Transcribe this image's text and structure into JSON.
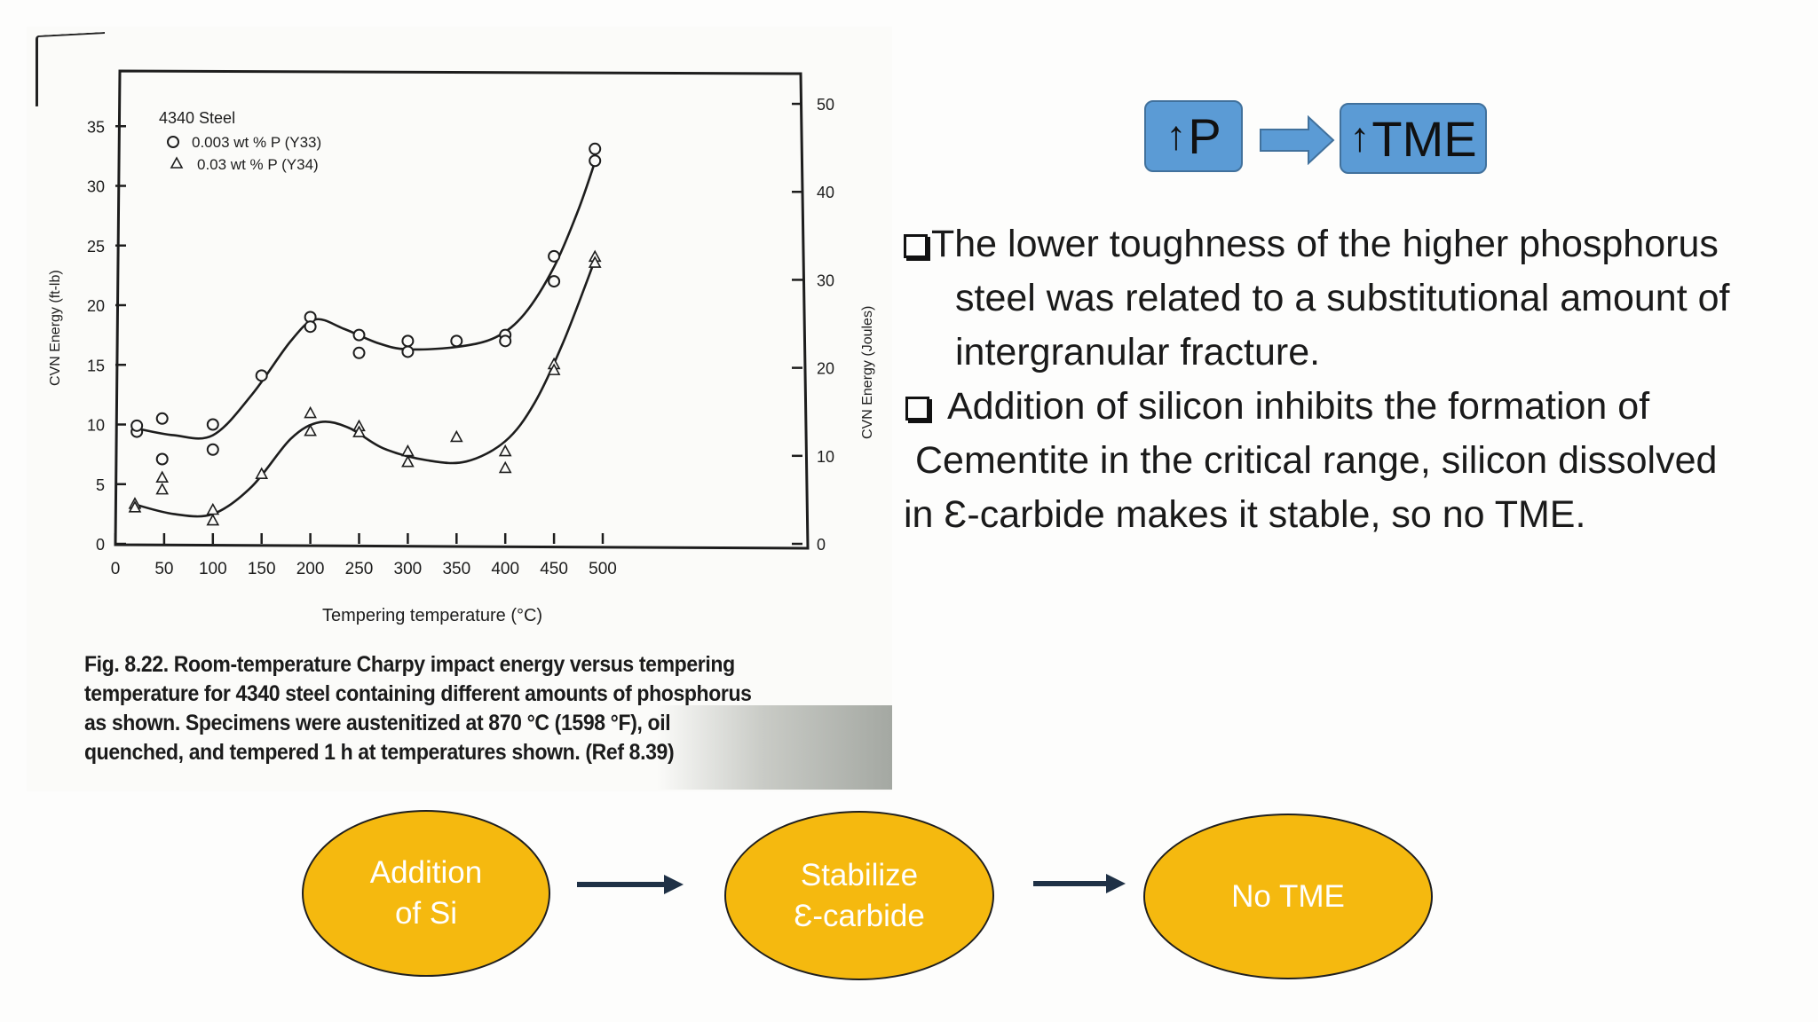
{
  "chart_data": {
    "type": "scatter",
    "title": "",
    "xlabel": "Tempering temperature (°C)",
    "ylabel": "CVN Energy (ft-lb)",
    "y2label": "CVN Energy (Joules)",
    "xlim": [
      0,
      540
    ],
    "ylim": [
      0,
      38
    ],
    "y2lim": [
      0,
      51.5
    ],
    "x_ticks": [
      0,
      50,
      100,
      150,
      200,
      250,
      300,
      350,
      400,
      450,
      500
    ],
    "y_ticks": [
      0,
      5,
      10,
      15,
      20,
      25,
      30,
      35
    ],
    "y2_ticks": [
      0,
      10,
      20,
      30,
      40,
      50
    ],
    "grid": false,
    "legend_title": "4340 Steel",
    "legend_position": "top-left",
    "series": [
      {
        "name": "0.003 wt % P (Y33)",
        "marker": "circle",
        "points": [
          [
            22,
            9.4
          ],
          [
            22,
            9.9
          ],
          [
            48,
            10.5
          ],
          [
            48,
            7.1
          ],
          [
            100,
            10.0
          ],
          [
            100,
            7.9
          ],
          [
            150,
            14.1
          ],
          [
            200,
            19.0
          ],
          [
            200,
            18.2
          ],
          [
            250,
            17.5
          ],
          [
            250,
            16.0
          ],
          [
            300,
            17.0
          ],
          [
            300,
            16.1
          ],
          [
            350,
            17.0
          ],
          [
            400,
            17.5
          ],
          [
            400,
            17.0
          ],
          [
            450,
            24.1
          ],
          [
            450,
            22.0
          ],
          [
            492,
            33.1
          ],
          [
            492,
            32.1
          ]
        ],
        "curve": [
          [
            20,
            9.7
          ],
          [
            60,
            9.1
          ],
          [
            100,
            9.1
          ],
          [
            140,
            12.5
          ],
          [
            180,
            17.0
          ],
          [
            205,
            18.8
          ],
          [
            235,
            18.0
          ],
          [
            270,
            16.8
          ],
          [
            300,
            16.3
          ],
          [
            350,
            16.5
          ],
          [
            390,
            17.3
          ],
          [
            420,
            19.3
          ],
          [
            450,
            23.2
          ],
          [
            475,
            28.0
          ],
          [
            492,
            32.0
          ]
        ]
      },
      {
        "name": "0.03 wt % P (Y34)",
        "marker": "triangle",
        "points": [
          [
            20,
            3.4
          ],
          [
            20,
            3.1
          ],
          [
            48,
            5.6
          ],
          [
            48,
            4.6
          ],
          [
            100,
            2.9
          ],
          [
            100,
            2.0
          ],
          [
            150,
            5.9
          ],
          [
            200,
            11.0
          ],
          [
            200,
            9.5
          ],
          [
            250,
            9.9
          ],
          [
            250,
            9.4
          ],
          [
            300,
            7.8
          ],
          [
            300,
            6.9
          ],
          [
            350,
            9.0
          ],
          [
            400,
            7.8
          ],
          [
            400,
            6.4
          ],
          [
            450,
            15.1
          ],
          [
            450,
            14.6
          ],
          [
            492,
            24.1
          ],
          [
            492,
            23.6
          ]
        ],
        "curve": [
          [
            20,
            3.3
          ],
          [
            60,
            2.5
          ],
          [
            100,
            2.5
          ],
          [
            140,
            4.8
          ],
          [
            180,
            8.8
          ],
          [
            210,
            10.2
          ],
          [
            240,
            9.7
          ],
          [
            275,
            8.0
          ],
          [
            320,
            7.0
          ],
          [
            360,
            6.9
          ],
          [
            400,
            8.6
          ],
          [
            430,
            11.8
          ],
          [
            460,
            17.0
          ],
          [
            492,
            23.8
          ]
        ]
      }
    ]
  },
  "figure": {
    "caption": "Fig. 8.22. Room-temperature Charpy impact energy versus tempering temperature for 4340 steel containing different amounts of phosphorus as shown. Specimens were austenitized at 870 °C (1598 °F), oil quenched, and tempered 1 h at temperatures shown. (Ref 8.39)"
  },
  "flow_top": {
    "up_arrow": "↑",
    "box1": "P",
    "box2": "TME"
  },
  "bullets": {
    "b1_line1": "The lower toughness of the higher phosphorus",
    "b1_line2": "steel was related to a substitutional amount of",
    "b1_line3": "intergranular fracture.",
    "b2_line1": "Addition of silicon inhibits the formation of",
    "b2_line2": "Cementite in the critical range, silicon   dissolved",
    "b2_line3": "in Ɛ-carbide makes it stable,  so no TME."
  },
  "flow_bottom": {
    "oval1_line1": "Addition",
    "oval1_line2": "of Si",
    "oval2_line1": "Stabilize",
    "oval2_line2": "Ɛ-carbide",
    "oval3": "No TME"
  },
  "colors": {
    "box_fill": "#5b9bd5",
    "box_border": "#41719c",
    "oval_fill": "#f5b90f",
    "flow_arrow": "#1f3146"
  }
}
